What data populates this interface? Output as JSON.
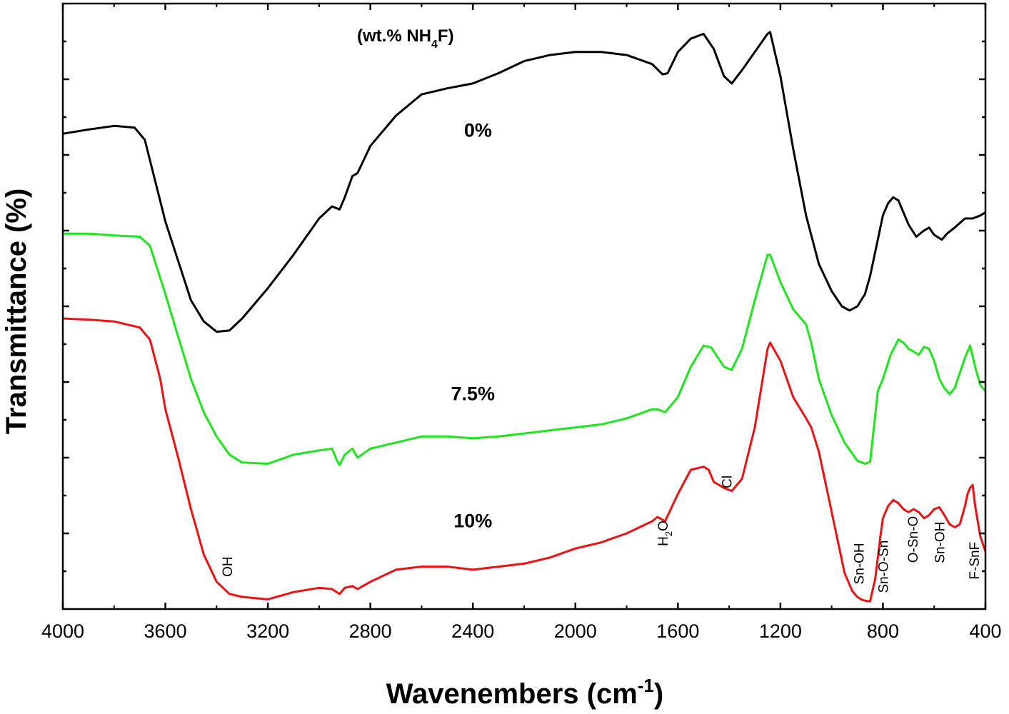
{
  "chart_data": {
    "type": "line",
    "title": "",
    "legend_title": {
      "main": "(wt.% NH",
      "sub": "4",
      "tail": "F)"
    },
    "xlabel": {
      "main": "Wavenembers (cm",
      "sup": "-1",
      "tail": ")"
    },
    "ylabel": "Transmittance (%)",
    "xlim": [
      4000,
      400
    ],
    "ylim": [
      0,
      100
    ],
    "x_ticks": [
      "4000",
      "3600",
      "3200",
      "2800",
      "2400",
      "2000",
      "1600",
      "1200",
      "800",
      "400"
    ],
    "x_tick_values": [
      4000,
      3600,
      3200,
      2800,
      2400,
      2000,
      1600,
      1200,
      800,
      400
    ],
    "y_ticks": [],
    "grid": false,
    "series": [
      {
        "name": "0%",
        "color": "#000000",
        "x": [
          4000,
          3900,
          3800,
          3720,
          3680,
          3600,
          3500,
          3450,
          3400,
          3350,
          3300,
          3200,
          3100,
          3000,
          2950,
          2920,
          2900,
          2870,
          2850,
          2800,
          2700,
          2600,
          2500,
          2400,
          2300,
          2200,
          2100,
          2000,
          1900,
          1800,
          1700,
          1660,
          1640,
          1600,
          1550,
          1500,
          1460,
          1420,
          1390,
          1350,
          1300,
          1250,
          1240,
          1200,
          1150,
          1100,
          1050,
          1000,
          960,
          930,
          900,
          870,
          850,
          820,
          800,
          780,
          760,
          740,
          720,
          700,
          670,
          640,
          620,
          600,
          570,
          550,
          520,
          480,
          450,
          420,
          400
        ],
        "y": [
          78.5,
          79.2,
          79.8,
          79.5,
          77.5,
          64.0,
          51.0,
          47.5,
          45.8,
          46.0,
          48.0,
          53.0,
          58.5,
          64.5,
          66.5,
          66.0,
          68.0,
          71.5,
          72.0,
          76.5,
          81.5,
          85.0,
          86.0,
          86.8,
          88.5,
          90.5,
          91.5,
          92.0,
          92.0,
          91.5,
          90.0,
          88.3,
          88.5,
          92.0,
          94.2,
          95.0,
          92.5,
          88.0,
          86.8,
          89.0,
          92.0,
          95.0,
          95.3,
          88.0,
          76.0,
          65.0,
          57.0,
          52.5,
          50.0,
          49.3,
          50.0,
          52.0,
          55.0,
          61.0,
          65.0,
          67.0,
          68.0,
          67.5,
          65.5,
          63.5,
          61.5,
          62.5,
          63.0,
          61.8,
          61.0,
          62.0,
          63.0,
          64.5,
          64.5,
          65.0,
          65.5
        ]
      },
      {
        "name": "7.5%",
        "color": "#1ee61e",
        "x": [
          4000,
          3900,
          3800,
          3700,
          3660,
          3600,
          3500,
          3450,
          3400,
          3350,
          3300,
          3200,
          3100,
          3000,
          2950,
          2930,
          2920,
          2900,
          2870,
          2850,
          2800,
          2700,
          2600,
          2500,
          2400,
          2300,
          2200,
          2100,
          2000,
          1900,
          1800,
          1700,
          1680,
          1650,
          1600,
          1550,
          1500,
          1470,
          1420,
          1390,
          1350,
          1300,
          1250,
          1240,
          1200,
          1150,
          1100,
          1080,
          1050,
          1000,
          950,
          900,
          870,
          850,
          820,
          800,
          770,
          740,
          720,
          700,
          680,
          660,
          640,
          620,
          600,
          580,
          560,
          540,
          520,
          500,
          480,
          460,
          440,
          420,
          400
        ],
        "y": [
          62.0,
          62.0,
          61.7,
          61.5,
          60.0,
          52.0,
          38.0,
          32.5,
          28.5,
          25.5,
          24.2,
          24.0,
          25.5,
          26.2,
          26.5,
          24.5,
          23.8,
          25.5,
          26.5,
          25.0,
          26.5,
          27.5,
          28.5,
          28.5,
          28.2,
          28.5,
          29.0,
          29.5,
          30.0,
          30.5,
          31.5,
          33.0,
          33.0,
          32.5,
          35.0,
          40.0,
          43.5,
          43.2,
          40.0,
          39.5,
          43.0,
          51.0,
          58.5,
          58.5,
          54.0,
          49.5,
          47.0,
          44.0,
          38.0,
          32.0,
          27.5,
          24.5,
          24.0,
          24.3,
          36.0,
          38.0,
          42.0,
          44.5,
          44.0,
          43.0,
          42.5,
          42.0,
          43.3,
          43.0,
          41.0,
          38.0,
          36.5,
          35.5,
          36.5,
          39.0,
          41.5,
          43.5,
          40.0,
          37.0,
          36.0
        ]
      },
      {
        "name": "10%",
        "color": "#ee1111",
        "x": [
          4000,
          3900,
          3800,
          3700,
          3660,
          3620,
          3600,
          3550,
          3500,
          3450,
          3400,
          3350,
          3300,
          3250,
          3200,
          3100,
          3000,
          2950,
          2920,
          2900,
          2870,
          2850,
          2800,
          2700,
          2600,
          2500,
          2400,
          2300,
          2200,
          2100,
          2000,
          1900,
          1800,
          1700,
          1680,
          1650,
          1600,
          1550,
          1500,
          1480,
          1460,
          1420,
          1390,
          1350,
          1300,
          1250,
          1240,
          1200,
          1150,
          1100,
          1080,
          1050,
          1000,
          950,
          920,
          900,
          880,
          860,
          850,
          830,
          810,
          800,
          780,
          760,
          740,
          720,
          700,
          680,
          660,
          640,
          620,
          600,
          580,
          560,
          540,
          520,
          500,
          480,
          470,
          460,
          450,
          440,
          420,
          400
        ],
        "y": [
          48.0,
          47.8,
          47.5,
          46.5,
          44.5,
          38.0,
          33.0,
          25.0,
          16.5,
          9.0,
          4.5,
          2.5,
          2.0,
          1.8,
          1.6,
          2.8,
          3.5,
          3.3,
          2.5,
          3.5,
          3.8,
          3.3,
          4.5,
          6.5,
          7.0,
          7.0,
          6.5,
          7.0,
          7.5,
          8.5,
          10.0,
          11.0,
          12.5,
          14.5,
          15.2,
          14.5,
          19.0,
          23.0,
          23.5,
          23.0,
          21.0,
          20.0,
          19.5,
          21.5,
          30.0,
          43.0,
          44.0,
          41.0,
          35.0,
          31.5,
          30.0,
          26.0,
          16.0,
          6.0,
          3.0,
          2.0,
          1.5,
          1.3,
          1.3,
          5.0,
          12.0,
          15.0,
          17.0,
          18.0,
          17.5,
          16.5,
          16.0,
          16.5,
          16.0,
          15.0,
          15.5,
          16.5,
          16.8,
          15.5,
          14.0,
          13.5,
          14.0,
          17.0,
          19.0,
          20.0,
          20.5,
          17.0,
          12.0,
          9.5
        ]
      }
    ],
    "series_labels": [
      {
        "text": "0%",
        "at_x": 2380,
        "at_y": 78.0
      },
      {
        "text": "7.5%",
        "at_x": 2400,
        "at_y": 34.5
      },
      {
        "text": "10%",
        "at_x": 2400,
        "at_y": 13.5
      }
    ],
    "annotations": [
      {
        "text": "OH",
        "at_x": 3340,
        "at_y": 7.0
      },
      {
        "text": "H",
        "sub": "2",
        "tail": "O",
        "at_x": 1640,
        "at_y": 12.5
      },
      {
        "text": "Cl",
        "at_x": 1390,
        "at_y": 21.0
      },
      {
        "text": "Sn-OH",
        "at_x": 875,
        "at_y": 7.5
      },
      {
        "text": "Sn-O-Sn",
        "at_x": 780,
        "at_y": 7.0
      },
      {
        "text": "O-Sn-O",
        "at_x": 665,
        "at_y": 11.5
      },
      {
        "text": "Sn-OH",
        "at_x": 560,
        "at_y": 11.0
      },
      {
        "text": "F-SnF",
        "at_x": 425,
        "at_y": 8.0
      }
    ]
  }
}
